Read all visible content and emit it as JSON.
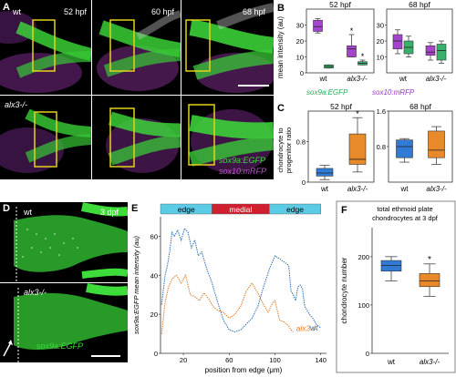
{
  "panel_a": {
    "letter": "A",
    "row1_genotype": "wt",
    "row2_genotype": "alx3-/-",
    "times": [
      "52 hpf",
      "60 hpf",
      "68 hpf"
    ],
    "legend_green": "sox9a:EGFP",
    "legend_magenta": "sox10:mRFP",
    "colors": {
      "green": "#3ddc3a",
      "magenta": "#b040c0",
      "box": "#e6d21a"
    }
  },
  "panel_d": {
    "letter": "D",
    "wt": "wt",
    "time": "3 dpf",
    "mutant": "alx3-/-",
    "legend": "sox9a:EGFP"
  },
  "chart_data": [
    {
      "id": "B",
      "type": "box",
      "ylabel": "mean intensity (au)",
      "legend": [
        {
          "name": "sox9a:EGFP",
          "color": "#21a95a"
        },
        {
          "name": "sox10:mRFP",
          "color": "#9b30c8"
        }
      ],
      "subplots": [
        {
          "title": "52 hpf",
          "ylim": [
            0,
            40
          ],
          "yticks": [
            0,
            10,
            20,
            30
          ],
          "categories": [
            "wt",
            "alx3-/-"
          ],
          "boxes": [
            {
              "cat": "wt",
              "series": "sox10:mRFP",
              "q1": 26,
              "median": 29,
              "q3": 33,
              "min": 25,
              "max": 34
            },
            {
              "cat": "wt",
              "series": "sox9a:EGFP",
              "q1": 3,
              "median": 4,
              "q3": 5,
              "min": 3,
              "max": 5
            },
            {
              "cat": "alx3-/-",
              "series": "sox10:mRFP",
              "q1": 10,
              "median": 15,
              "q3": 17,
              "min": 10,
              "max": 24
            },
            {
              "cat": "alx3-/-",
              "series": "sox9a:EGFP",
              "q1": 5,
              "median": 6,
              "q3": 7,
              "min": 5,
              "max": 8
            }
          ],
          "significance": [
            "alx3-/-"
          ]
        },
        {
          "title": "68 hpf",
          "ylim": [
            0,
            40
          ],
          "yticks": [
            10,
            20,
            30
          ],
          "categories": [
            "wt",
            "alx3-/-"
          ],
          "boxes": [
            {
              "cat": "wt",
              "series": "sox10:mRFP",
              "q1": 15,
              "median": 20,
              "q3": 24,
              "min": 12,
              "max": 27
            },
            {
              "cat": "wt",
              "series": "sox9a:EGFP",
              "q1": 12,
              "median": 16,
              "q3": 20,
              "min": 10,
              "max": 23
            },
            {
              "cat": "alx3-/-",
              "series": "sox10:mRFP",
              "q1": 11,
              "median": 13,
              "q3": 17,
              "min": 8,
              "max": 19
            },
            {
              "cat": "alx3-/-",
              "series": "sox9a:EGFP",
              "q1": 8,
              "median": 14,
              "q3": 18,
              "min": 6,
              "max": 20
            }
          ]
        }
      ]
    },
    {
      "id": "C",
      "type": "box",
      "ylabel": "chondrocyte to progenitor ratio",
      "subplots": [
        {
          "title": "52 hpf",
          "ylim": [
            0,
            1.4
          ],
          "yticks": [
            0,
            0.8
          ],
          "categories": [
            "wt",
            "alx3-/-"
          ],
          "boxes": [
            {
              "cat": "wt",
              "color": "#2f7bd6",
              "q1": 0.12,
              "median": 0.18,
              "q3": 0.27,
              "min": 0.05,
              "max": 0.33
            },
            {
              "cat": "alx3-/-",
              "color": "#e8892a",
              "q1": 0.35,
              "median": 0.45,
              "q3": 0.95,
              "min": 0.2,
              "max": 1.27
            }
          ],
          "significance": [
            "alx3-/-"
          ]
        },
        {
          "title": "68 hpf",
          "ylim": [
            0,
            1.6
          ],
          "yticks": [
            0.8,
            1.6
          ],
          "categories": [
            "wt",
            "alx3-/-"
          ],
          "boxes": [
            {
              "cat": "wt",
              "color": "#2f7bd6",
              "q1": 0.55,
              "median": 0.8,
              "q3": 0.95,
              "min": 0.45,
              "max": 0.98
            },
            {
              "cat": "alx3-/-",
              "color": "#e8892a",
              "q1": 0.55,
              "median": 0.72,
              "q3": 1.15,
              "min": 0.4,
              "max": 1.25
            }
          ]
        }
      ]
    },
    {
      "id": "E",
      "type": "line",
      "ylabel": "sox9a:EGFP mean intensity (au)",
      "xlabel": "position from edge (μm)",
      "xlim": [
        0,
        145
      ],
      "ylim": [
        0,
        70
      ],
      "xticks": [
        20,
        60,
        100,
        140
      ],
      "yticks": [
        0,
        20,
        40,
        60
      ],
      "regions": [
        {
          "label": "edge",
          "from": 0,
          "to": 45,
          "color": "#5ccbe6"
        },
        {
          "label": "medial",
          "from": 45,
          "to": 95,
          "color": "#d11f2f"
        },
        {
          "label": "edge",
          "from": 95,
          "to": 140,
          "color": "#5ccbe6"
        }
      ],
      "series": [
        {
          "name": "wt",
          "color": "#2f6db8",
          "x": [
            1,
            4,
            6,
            8,
            10,
            12,
            15,
            18,
            21,
            24,
            27,
            30,
            33,
            36,
            40,
            45,
            50,
            55,
            60,
            65,
            70,
            75,
            80,
            85,
            90,
            95,
            100,
            105,
            110,
            112,
            114,
            116,
            118,
            120,
            122,
            124,
            126,
            128,
            130,
            133,
            136,
            140
          ],
          "y": [
            25,
            40,
            45,
            52,
            62,
            60,
            63,
            58,
            64,
            62,
            54,
            58,
            50,
            52,
            44,
            36,
            26,
            17,
            12,
            11,
            12,
            15,
            18,
            24,
            34,
            43,
            50,
            48,
            46,
            45,
            32,
            30,
            27,
            34,
            35,
            33,
            24,
            22,
            20,
            18,
            15,
            13
          ]
        },
        {
          "name": "alx3-/-",
          "color": "#e07a2a",
          "x": [
            1,
            4,
            7,
            10,
            14,
            18,
            22,
            26,
            30,
            34,
            38,
            42,
            46,
            50,
            55,
            60,
            65,
            70,
            75,
            80,
            85,
            90,
            94,
            98,
            100,
            104,
            108,
            110,
            112,
            114,
            116
          ],
          "y": [
            10,
            26,
            34,
            38,
            40,
            36,
            40,
            30,
            29,
            27,
            31,
            28,
            24,
            22,
            21,
            18,
            20,
            24,
            32,
            36,
            31,
            25,
            21,
            26,
            27,
            17,
            16,
            15,
            14,
            12,
            11
          ]
        }
      ]
    },
    {
      "id": "F",
      "type": "box",
      "title": "total ethmoid plate chondrocytes at 3 dpf",
      "ylabel": "chondrocyte number",
      "ylim": [
        0,
        260
      ],
      "yticks": [
        0,
        100,
        200
      ],
      "categories": [
        "wt",
        "alx3-/-"
      ],
      "boxes": [
        {
          "cat": "wt",
          "color": "#2f7bd6",
          "q1": 170,
          "median": 182,
          "q3": 192,
          "min": 150,
          "max": 200
        },
        {
          "cat": "alx3-/-",
          "color": "#e8892a",
          "q1": 138,
          "median": 150,
          "q3": 165,
          "min": 118,
          "max": 185
        }
      ],
      "significance": [
        "alx3-/-"
      ]
    }
  ]
}
